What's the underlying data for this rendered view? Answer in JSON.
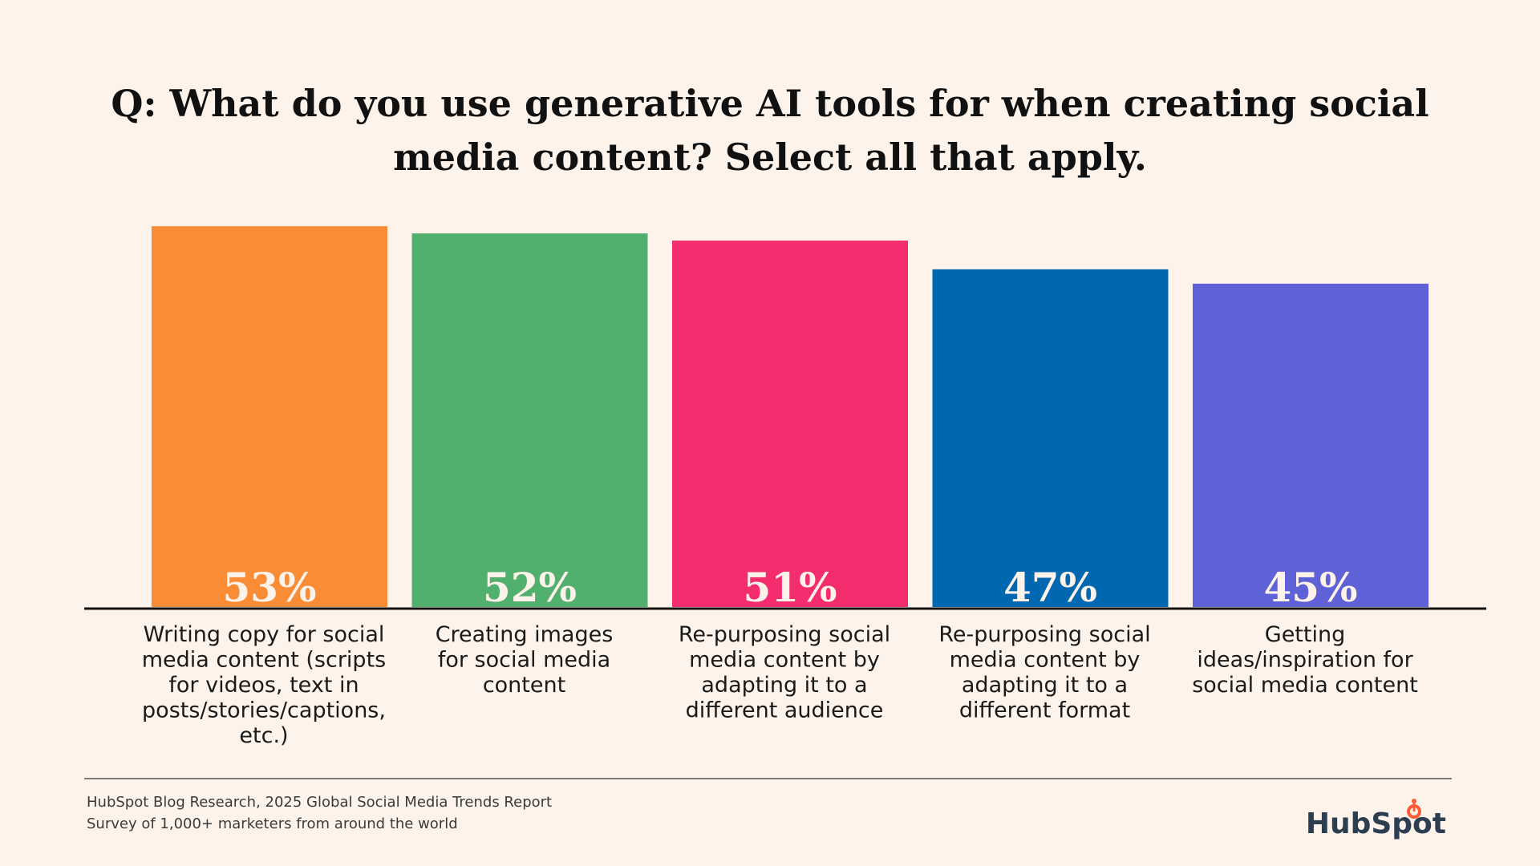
{
  "chart_data": {
    "type": "bar",
    "title_lines": [
      "Q: What do you use generative AI tools for when creating social",
      "media content? Select all that apply."
    ],
    "categories": [
      [
        "Writing copy for social",
        "media content (scripts",
        "for videos, text in",
        "posts/stories/captions,",
        "etc.)"
      ],
      [
        "Creating images",
        "for social media",
        "content"
      ],
      [
        "Re-purposing social",
        "media content by",
        "adapting it to a",
        "different audience"
      ],
      [
        "Re-purposing social",
        "media content by",
        "adapting it to a",
        "different format"
      ],
      [
        "Getting",
        "ideas/inspiration for",
        "social media content"
      ]
    ],
    "values": [
      53,
      52,
      51,
      47,
      45
    ],
    "value_labels": [
      "53%",
      "52%",
      "51%",
      "47%",
      "45%"
    ],
    "colors": [
      "#fa8c35",
      "#52b06f",
      "#f42d6e",
      "#0068b1",
      "#5f61d7"
    ],
    "units": "%",
    "xlabel": "",
    "ylabel": "",
    "grid": false
  },
  "footer": {
    "source_line_1": "HubSpot Blog Research, 2025 Global Social Media Trends Report",
    "source_line_2": "Survey of 1,000+ marketers from around the world",
    "logo_text": "HubSpot"
  },
  "colors": {
    "background": "#fdf3ea",
    "text": "#111111",
    "logo": "#2d3e50",
    "logo_accent": "#ff5c35"
  }
}
